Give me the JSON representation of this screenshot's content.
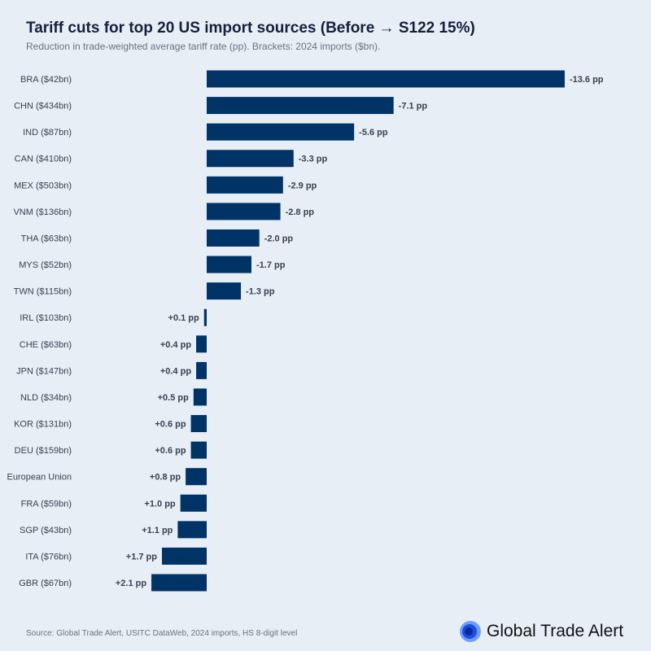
{
  "title": "Tariff cuts for top 20 US import sources (Before → S122 15%)",
  "subtitle": "Reduction in trade-weighted average tariff rate (pp). Brackets: 2024 imports ($bn).",
  "source": "Source: Global Trade Alert, USITC DataWeb, 2024 imports, HS 8-digit level",
  "logo_text": "Global Trade Alert",
  "colors": {
    "bar": "#003366",
    "background": "#e8eef6",
    "logo": "#1a5cff"
  },
  "chart_data": {
    "type": "bar",
    "orientation": "horizontal",
    "axis_direction": "reversed (negative values extend right)",
    "grid": false,
    "categories": [
      "BRA ($42bn)",
      "CHN ($434bn)",
      "IND ($87bn)",
      "CAN ($410bn)",
      "MEX ($503bn)",
      "VNM ($136bn)",
      "THA ($63bn)",
      "MYS ($52bn)",
      "TWN ($115bn)",
      "IRL ($103bn)",
      "CHE ($63bn)",
      "JPN ($147bn)",
      "NLD ($34bn)",
      "KOR ($131bn)",
      "DEU ($159bn)",
      "European Union",
      "FRA ($59bn)",
      "SGP ($43bn)",
      "ITA ($76bn)",
      "GBR ($67bn)"
    ],
    "values": [
      -13.6,
      -7.1,
      -5.6,
      -3.3,
      -2.9,
      -2.8,
      -2.0,
      -1.7,
      -1.3,
      0.1,
      0.4,
      0.4,
      0.5,
      0.6,
      0.6,
      0.8,
      1.0,
      1.1,
      1.7,
      2.1
    ],
    "labels": [
      "-13.6 pp",
      "-7.1 pp",
      "-5.6 pp",
      "-3.3 pp",
      "-2.9 pp",
      "-2.8 pp",
      "-2.0 pp",
      "-1.7 pp",
      "-1.3 pp",
      "+0.1 pp",
      "+0.4 pp",
      "+0.4 pp",
      "+0.5 pp",
      "+0.6 pp",
      "+0.6 pp",
      "+0.8 pp",
      "+1.0 pp",
      "+1.1 pp",
      "+1.7 pp",
      "+2.1 pp"
    ]
  }
}
